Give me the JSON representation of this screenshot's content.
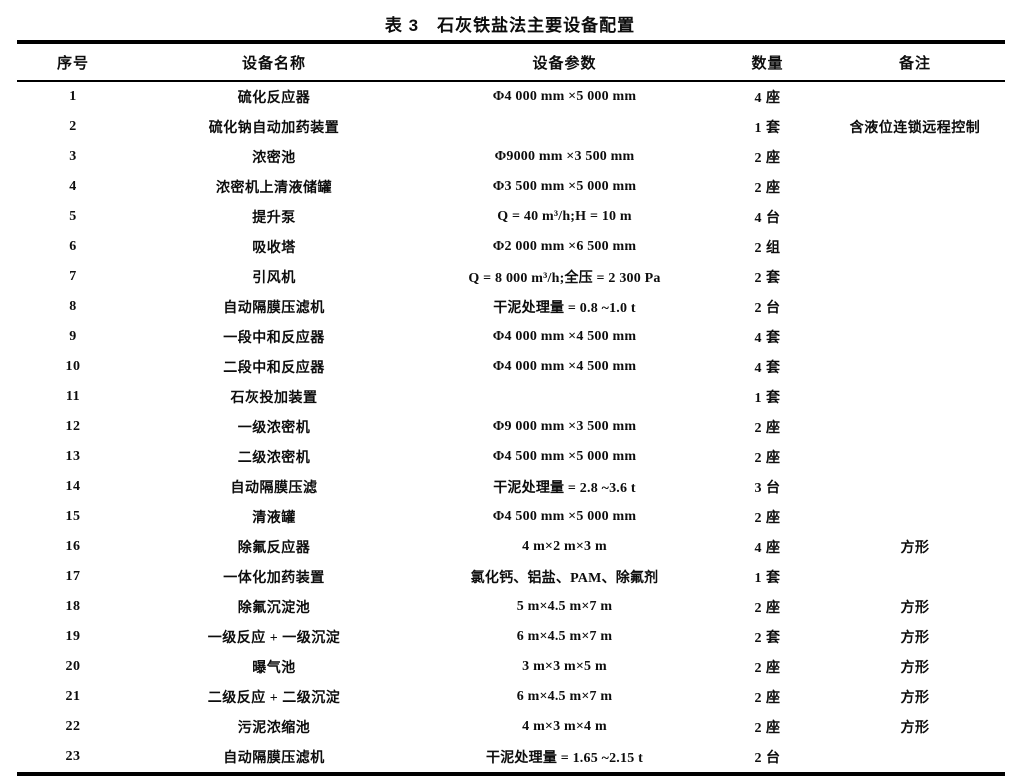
{
  "title": "表 3　石灰铁盐法主要设备配置",
  "table": {
    "headers": [
      "序号",
      "设备名称",
      "设备参数",
      "数量",
      "备注"
    ],
    "rows": [
      [
        "1",
        "硫化反应器",
        "Φ4 000 mm ×5 000 mm",
        "4 座",
        ""
      ],
      [
        "2",
        "硫化钠自动加药装置",
        "",
        "1 套",
        "含液位连锁远程控制"
      ],
      [
        "3",
        "浓密池",
        "Φ9000 mm ×3 500 mm",
        "2 座",
        ""
      ],
      [
        "4",
        "浓密机上清液储罐",
        "Φ3 500 mm ×5 000 mm",
        "2 座",
        ""
      ],
      [
        "5",
        "提升泵",
        "Q = 40 m³/h;H = 10 m",
        "4 台",
        ""
      ],
      [
        "6",
        "吸收塔",
        "Φ2 000 mm ×6 500 mm",
        "2 组",
        ""
      ],
      [
        "7",
        "引风机",
        "Q = 8 000 m³/h;全压 = 2 300 Pa",
        "2 套",
        ""
      ],
      [
        "8",
        "自动隔膜压滤机",
        "干泥处理量 = 0.8 ~1.0 t",
        "2 台",
        ""
      ],
      [
        "9",
        "一段中和反应器",
        "Φ4 000 mm ×4 500 mm",
        "4 套",
        ""
      ],
      [
        "10",
        "二段中和反应器",
        "Φ4 000 mm ×4 500 mm",
        "4 套",
        ""
      ],
      [
        "11",
        "石灰投加装置",
        "",
        "1 套",
        ""
      ],
      [
        "12",
        "一级浓密机",
        "Φ9 000 mm ×3 500 mm",
        "2 座",
        ""
      ],
      [
        "13",
        "二级浓密机",
        "Φ4 500 mm ×5 000 mm",
        "2 座",
        ""
      ],
      [
        "14",
        "自动隔膜压滤",
        "干泥处理量 = 2.8 ~3.6 t",
        "3 台",
        ""
      ],
      [
        "15",
        "清液罐",
        "Φ4 500 mm ×5 000 mm",
        "2 座",
        ""
      ],
      [
        "16",
        "除氟反应器",
        "4 m×2 m×3 m",
        "4 座",
        "方形"
      ],
      [
        "17",
        "一体化加药装置",
        "氯化钙、铝盐、PAM、除氟剂",
        "1 套",
        ""
      ],
      [
        "18",
        "除氟沉淀池",
        "5 m×4.5 m×7 m",
        "2 座",
        "方形"
      ],
      [
        "19",
        "一级反应 + 一级沉淀",
        "6 m×4.5 m×7 m",
        "2 套",
        "方形"
      ],
      [
        "20",
        "曝气池",
        "3 m×3 m×5 m",
        "2 座",
        "方形"
      ],
      [
        "21",
        "二级反应 + 二级沉淀",
        "6 m×4.5 m×7 m",
        "2 座",
        "方形"
      ],
      [
        "22",
        "污泥浓缩池",
        "4 m×3 m×4 m",
        "2 座",
        "方形"
      ],
      [
        "23",
        "自动隔膜压滤机",
        "干泥处理量 = 1.65 ~2.15 t",
        "2 台",
        ""
      ]
    ]
  }
}
